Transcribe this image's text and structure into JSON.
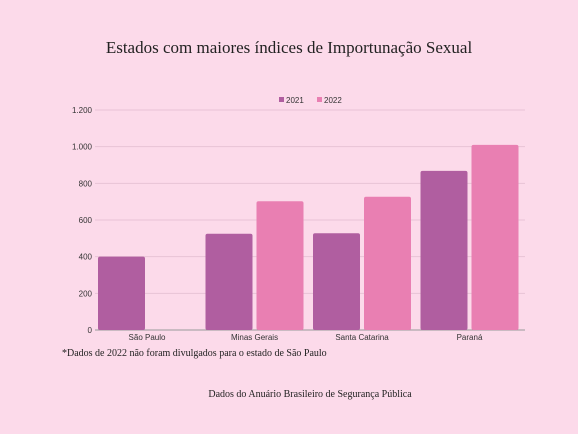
{
  "chart_data": {
    "type": "bar",
    "title": "Estados com maiores índices de Importunação Sexual",
    "categories": [
      "São Paulo",
      "Minas Gerais",
      "Santa Catarina",
      "Paraná"
    ],
    "series": [
      {
        "name": "2021",
        "values": [
          400,
          525,
          528,
          868
        ],
        "color": "#b05ea0"
      },
      {
        "name": "2022",
        "values": [
          null,
          702,
          727,
          1010
        ],
        "color": "#e97fb2"
      }
    ],
    "ylim": [
      0,
      1200
    ],
    "yticks": [
      0,
      200,
      400,
      600,
      800,
      1000,
      1200
    ],
    "ytick_labels": [
      "0",
      "200",
      "400",
      "600",
      "800",
      "1.000",
      "1.200"
    ],
    "legend_position": "top",
    "grid": true
  },
  "notes": {
    "footnote": "*Dados de 2022 não foram divulgados para o estado de São Paulo",
    "source": "Dados do Anuário Brasileiro de Segurança Pública"
  }
}
